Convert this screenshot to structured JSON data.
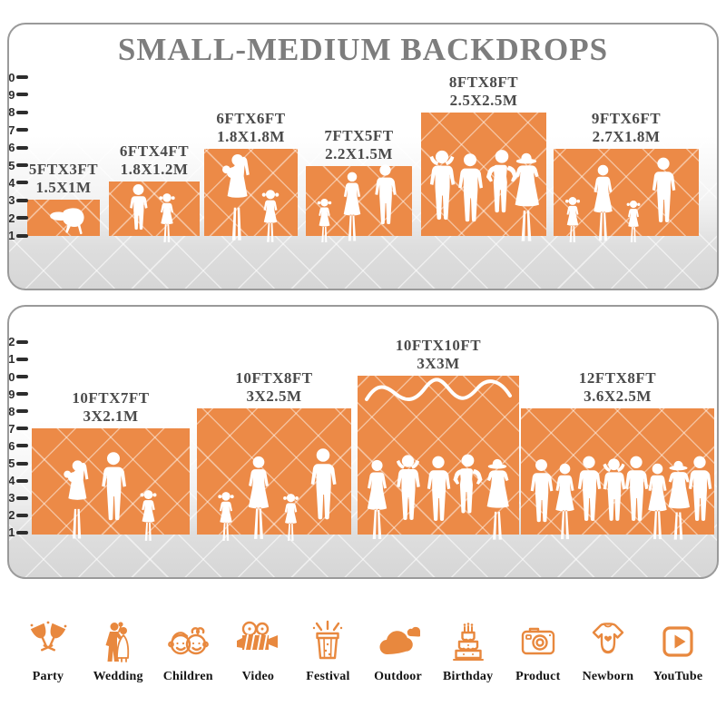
{
  "title": "SMALL-MEDIUM BACKDROPS",
  "panels": [
    {
      "name": "small-medium-backdrops",
      "ruler_ticks": [
        1,
        2,
        3,
        4,
        5,
        6,
        7,
        8,
        9,
        10
      ],
      "backdrops": [
        {
          "size_ft": "5FTX3FT",
          "size_m": "1.5X1M"
        },
        {
          "size_ft": "6FTX4FT",
          "size_m": "1.8X1.2M"
        },
        {
          "size_ft": "6FTX6FT",
          "size_m": "1.8X1.8M"
        },
        {
          "size_ft": "7FTX5FT",
          "size_m": "2.2X1.5M"
        },
        {
          "size_ft": "8FTX8FT",
          "size_m": "2.5X2.5M"
        },
        {
          "size_ft": "9FTX6FT",
          "size_m": "2.7X1.8M"
        }
      ]
    },
    {
      "name": "large-backdrops",
      "ruler_ticks": [
        1,
        2,
        3,
        4,
        5,
        6,
        7,
        8,
        9,
        10,
        11,
        12
      ],
      "backdrops": [
        {
          "size_ft": "10FTX7FT",
          "size_m": "3X2.1M"
        },
        {
          "size_ft": "10FTX8FT",
          "size_m": "3X2.5M"
        },
        {
          "size_ft": "10FTX10FT",
          "size_m": "3X3M"
        },
        {
          "size_ft": "12FTX8FT",
          "size_m": "3.6X2.5M"
        }
      ]
    }
  ],
  "categories": [
    {
      "label": "Party",
      "icon": "party-icon"
    },
    {
      "label": "Wedding",
      "icon": "wedding-icon"
    },
    {
      "label": "Children",
      "icon": "children-icon"
    },
    {
      "label": "Video",
      "icon": "video-icon"
    },
    {
      "label": "Festival",
      "icon": "festival-icon"
    },
    {
      "label": "Outdoor",
      "icon": "outdoor-icon"
    },
    {
      "label": "Birthday",
      "icon": "birthday-icon"
    },
    {
      "label": "Product",
      "icon": "product-icon"
    },
    {
      "label": "Newborn",
      "icon": "newborn-icon"
    },
    {
      "label": "YouTube",
      "icon": "youtube-icon"
    }
  ],
  "colors": {
    "backdrop_orange": "#EC8A47",
    "icon_orange": "#E8883E",
    "title_gray": "#7D7D7D",
    "label_gray": "#4A4A4A",
    "panel_border": "#9A9A9A",
    "ruler_ink": "#2D2D2D"
  }
}
